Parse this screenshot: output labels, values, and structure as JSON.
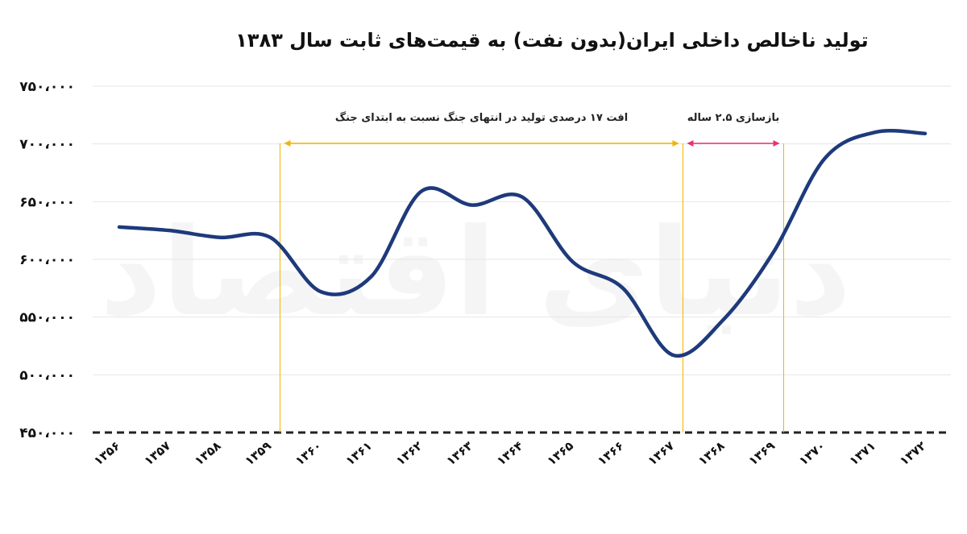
{
  "chart_data": {
    "type": "line",
    "title": "تولید ناخالص داخلی ایران(بدون نفت) به قیمت‌های ثابت سال ۱۳۸۳",
    "categories": [
      "۱۳۵۶",
      "۱۳۵۷",
      "۱۳۵۸",
      "۱۳۵۹",
      "۱۳۶۰",
      "۱۳۶۱",
      "۱۳۶۲",
      "۱۳۶۳",
      "۱۳۶۴",
      "۱۳۶۵",
      "۱۳۶۶",
      "۱۳۶۷",
      "۱۳۶۸",
      "۱۳۶۹",
      "۱۳۷۰",
      "۱۳۷۱",
      "۱۳۷۲"
    ],
    "values": [
      628000,
      625000,
      619000,
      619000,
      572000,
      585000,
      659000,
      647000,
      654000,
      598000,
      575000,
      517000,
      548000,
      607000,
      687000,
      710000,
      709000
    ],
    "yticks": [
      "۷۵۰،۰۰۰",
      "۷۰۰،۰۰۰",
      "۶۵۰،۰۰۰",
      "۶۰۰،۰۰۰",
      "۵۵۰،۰۰۰",
      "۵۰۰،۰۰۰",
      "۴۵۰،۰۰۰"
    ],
    "ylim": [
      450000,
      750000
    ],
    "grid": true,
    "line_color": "#1e3a7b",
    "annotations": [
      {
        "text": "افت ۱۷ درصدی تولید در انتهای جنگ نسبت به ابتدای جنگ",
        "from": "۱۳۵۹",
        "to": "۱۳۶۷",
        "color": "#f5b400"
      },
      {
        "text": "بازسازی ۲.۵ ساله",
        "from": "۱۳۶۷",
        "to": "۱۳۶۹",
        "color": "#e8346b"
      }
    ],
    "watermark": "دنیای اقتصاد"
  }
}
